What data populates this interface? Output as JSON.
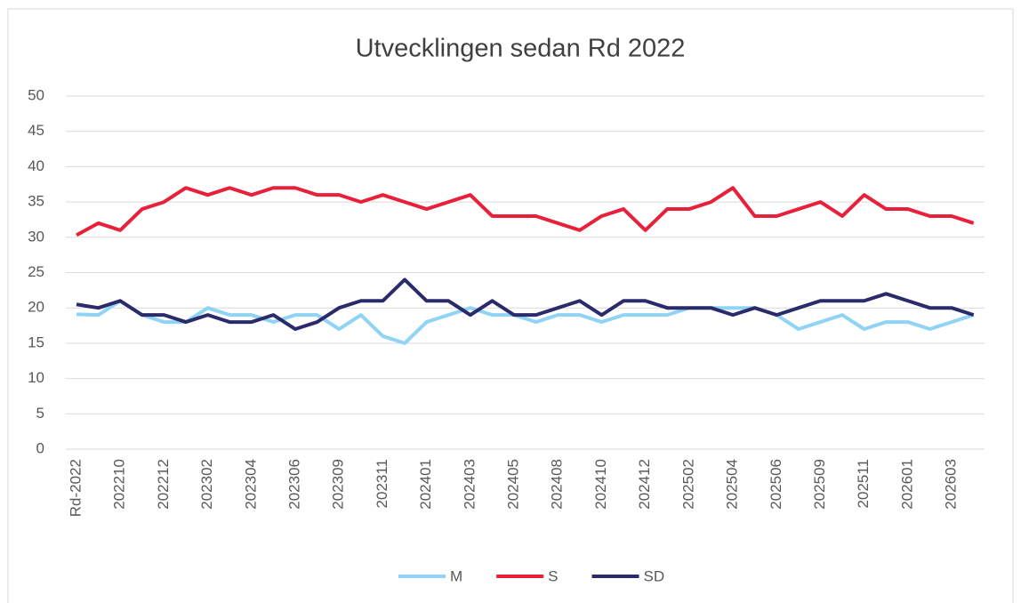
{
  "chart_data": {
    "type": "line",
    "title": "Utvecklingen sedan Rd 2022",
    "categories": [
      "Rd-2022",
      null,
      "202210",
      null,
      "202212",
      null,
      "202302",
      null,
      "202304",
      null,
      "202306",
      null,
      "202309",
      null,
      "202311",
      null,
      "202401",
      null,
      "202403",
      null,
      "202405",
      null,
      "202408",
      null,
      "202410",
      null,
      "202412",
      null,
      "202502",
      null,
      "202504",
      null,
      "202506",
      null,
      "202509",
      null,
      "202511",
      null,
      "202601",
      null,
      "202603",
      null
    ],
    "series": [
      {
        "name": "M",
        "color": "#8fd3f5",
        "values": [
          19.1,
          19,
          21,
          19,
          18,
          18,
          20,
          19,
          19,
          18,
          19,
          19,
          17,
          19,
          16,
          15,
          18,
          19,
          20,
          19,
          19,
          18,
          19,
          19,
          18,
          19,
          19,
          19,
          20,
          20,
          20,
          20,
          19,
          17,
          18,
          19,
          17,
          18,
          18,
          17,
          18,
          19
        ]
      },
      {
        "name": "S",
        "color": "#e8203a",
        "values": [
          30.3,
          32,
          31,
          34,
          35,
          37,
          36,
          37,
          36,
          37,
          37,
          36,
          36,
          35,
          36,
          35,
          34,
          35,
          36,
          33,
          33,
          33,
          32,
          31,
          33,
          34,
          31,
          34,
          34,
          35,
          37,
          33,
          33,
          34,
          35,
          33,
          36,
          34,
          34,
          33,
          33,
          32
        ]
      },
      {
        "name": "SD",
        "color": "#2b2a6b",
        "values": [
          20.5,
          20,
          21,
          19,
          19,
          18,
          19,
          18,
          18,
          19,
          17,
          18,
          20,
          21,
          21,
          24,
          21,
          21,
          19,
          21,
          19,
          19,
          20,
          21,
          19,
          21,
          21,
          20,
          20,
          20,
          19,
          20,
          19,
          20,
          21,
          21,
          21,
          22,
          21,
          20,
          20,
          19
        ]
      }
    ],
    "ylim": [
      0,
      50
    ],
    "yticks": [
      0,
      5,
      10,
      15,
      20,
      25,
      30,
      35,
      40,
      45,
      50
    ],
    "grid": true,
    "legend": "bottom"
  }
}
